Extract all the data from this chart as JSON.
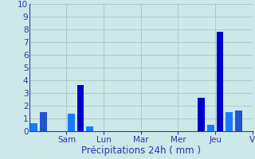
{
  "xlabel": "Précipitations 24h ( mm )",
  "background_color": "#cce8e8",
  "grid_color": "#aacccc",
  "ylim": [
    0,
    10
  ],
  "yticks": [
    0,
    1,
    2,
    3,
    4,
    5,
    6,
    7,
    8,
    9,
    10
  ],
  "day_labels": [
    "Sam",
    "Lun",
    "Mar",
    "Mer",
    "Jeu",
    "V"
  ],
  "day_tick_positions": [
    46,
    94,
    142,
    190,
    238,
    286
  ],
  "num_bars": 24,
  "bar_values": [
    0.6,
    1.5,
    0.0,
    0.0,
    1.35,
    3.6,
    0.35,
    0.0,
    0.0,
    0.0,
    0.0,
    0.0,
    0.0,
    0.0,
    0.0,
    0.0,
    0.0,
    0.0,
    2.6,
    0.5,
    7.8,
    1.5,
    1.65,
    0.0
  ],
  "bar_colors": [
    "#1a7aff",
    "#2255cc",
    "#1a7aff",
    "#1a7aff",
    "#1a7aff",
    "#0000cc",
    "#1a7aff",
    "#1a7aff",
    "#1a7aff",
    "#1a7aff",
    "#1a7aff",
    "#1a7aff",
    "#1a7aff",
    "#1a7aff",
    "#1a7aff",
    "#1a7aff",
    "#1a7aff",
    "#1a7aff",
    "#0000cc",
    "#1a7aff",
    "#0000cc",
    "#1a7aff",
    "#2255cc",
    "#1a7aff"
  ],
  "tick_color": "#3333aa",
  "xlabel_color": "#3333aa",
  "xlabel_fontsize": 8.5,
  "tick_fontsize": 7.5,
  "spine_color": "#3333aa"
}
